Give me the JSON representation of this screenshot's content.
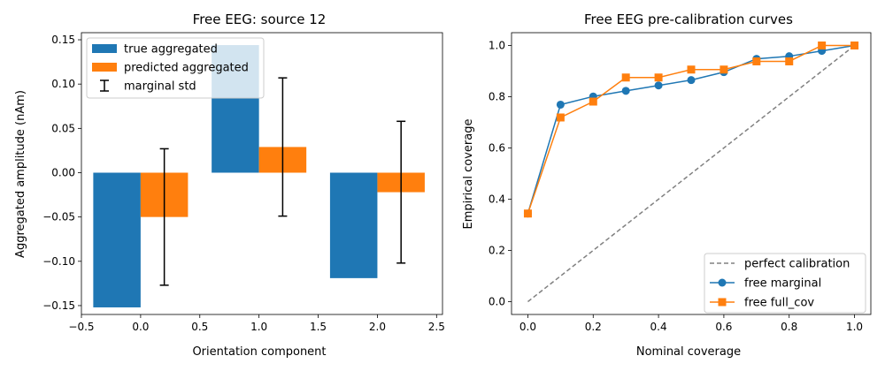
{
  "chart_data": [
    {
      "type": "bar",
      "title": "Free EEG: source 12",
      "xlabel": "Orientation component",
      "ylabel": "Aggregated amplitude (nAm)",
      "xlim": [
        -0.5,
        2.55
      ],
      "ylim": [
        -0.16,
        0.158
      ],
      "xticks": [
        -0.5,
        0.0,
        0.5,
        1.0,
        1.5,
        2.0,
        2.5
      ],
      "xtick_labels": [
        "−0.5",
        "0.0",
        "0.5",
        "1.0",
        "1.5",
        "2.0",
        "2.5"
      ],
      "yticks": [
        -0.15,
        -0.1,
        -0.05,
        0.0,
        0.05,
        0.1,
        0.15
      ],
      "ytick_labels": [
        "−0.15",
        "−0.10",
        "−0.05",
        "0.00",
        "0.05",
        "0.10",
        "0.15"
      ],
      "legend_position": "upper left",
      "series": [
        {
          "name": "true aggregated",
          "color": "#1f77b4",
          "x": [
            -0.2,
            0.8,
            1.8
          ],
          "width": 0.4,
          "values": [
            -0.152,
            0.144,
            -0.119
          ]
        },
        {
          "name": "predicted aggregated",
          "color": "#ff7f0e",
          "x": [
            0.2,
            1.2,
            2.2
          ],
          "width": 0.4,
          "values": [
            -0.05,
            0.029,
            -0.022
          ]
        }
      ],
      "errorbars": {
        "name": "marginal std",
        "color": "#000000",
        "x": [
          0.2,
          1.2,
          2.2
        ],
        "center": [
          -0.05,
          0.029,
          -0.022
        ],
        "err": [
          0.077,
          0.078,
          0.08
        ]
      }
    },
    {
      "type": "line",
      "title": "Free EEG pre-calibration curves",
      "xlabel": "Nominal coverage",
      "ylabel": "Empirical coverage",
      "xlim": [
        -0.05,
        1.05
      ],
      "ylim": [
        -0.05,
        1.05
      ],
      "xticks": [
        0.0,
        0.2,
        0.4,
        0.6,
        0.8,
        1.0
      ],
      "xtick_labels": [
        "0.0",
        "0.2",
        "0.4",
        "0.6",
        "0.8",
        "1.0"
      ],
      "yticks": [
        0.0,
        0.2,
        0.4,
        0.6,
        0.8,
        1.0
      ],
      "ytick_labels": [
        "0.0",
        "0.2",
        "0.4",
        "0.6",
        "0.8",
        "1.0"
      ],
      "legend_position": "lower right",
      "series": [
        {
          "name": "perfect calibration",
          "color": "#808080",
          "style": "dashed",
          "marker": "none",
          "x": [
            0.0,
            1.0
          ],
          "values": [
            0.0,
            1.0
          ]
        },
        {
          "name": "free marginal",
          "color": "#1f77b4",
          "style": "solid",
          "marker": "circle",
          "x": [
            0.0,
            0.1,
            0.2,
            0.3,
            0.4,
            0.5,
            0.6,
            0.7,
            0.8,
            0.9,
            1.0
          ],
          "values": [
            0.344,
            0.769,
            0.801,
            0.823,
            0.844,
            0.865,
            0.896,
            0.948,
            0.958,
            0.979,
            1.0
          ]
        },
        {
          "name": "free full_cov",
          "color": "#ff7f0e",
          "style": "solid",
          "marker": "square",
          "x": [
            0.0,
            0.1,
            0.2,
            0.3,
            0.4,
            0.5,
            0.6,
            0.7,
            0.8,
            0.9,
            1.0
          ],
          "values": [
            0.344,
            0.719,
            0.781,
            0.875,
            0.875,
            0.906,
            0.906,
            0.938,
            0.938,
            1.0,
            1.0
          ]
        }
      ]
    }
  ]
}
